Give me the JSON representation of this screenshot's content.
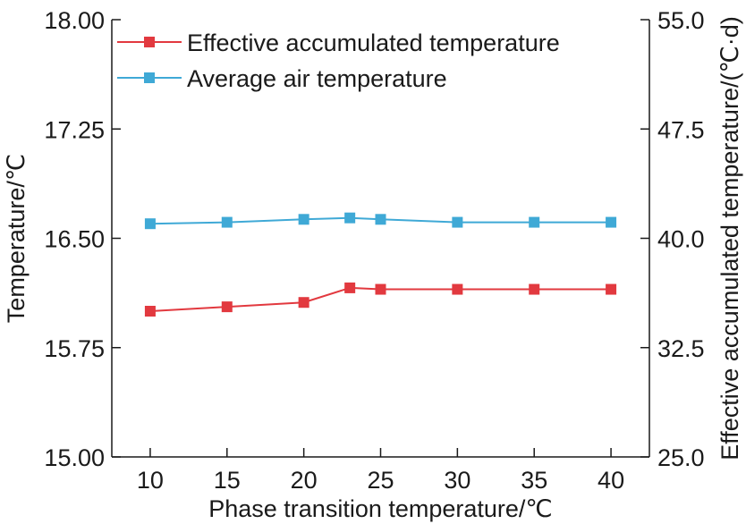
{
  "chart_data": {
    "type": "line",
    "title": "",
    "xlabel": "Phase transition temperature/℃",
    "ylabel": "Temperature/℃",
    "y2label": "Effective accumulated temperature/(℃·d)",
    "x": [
      10,
      15,
      20,
      23,
      25,
      30,
      35,
      40
    ],
    "x_ticks": [
      "10",
      "15",
      "20",
      "25",
      "30",
      "35",
      "40"
    ],
    "xlim": [
      7.5,
      42.5
    ],
    "ylim": [
      15.0,
      18.0
    ],
    "y_ticks": [
      "15.00",
      "15.75",
      "16.50",
      "17.25",
      "18.00"
    ],
    "y2lim": [
      25.0,
      55.0
    ],
    "y2_ticks": [
      "25.0",
      "32.5",
      "40.0",
      "47.5",
      "55.0"
    ],
    "legend_position": "top-left",
    "series": [
      {
        "name": "Effective accumulated temperature",
        "axis": "right",
        "color": "#e2393f",
        "marker": "square",
        "values": [
          35.0,
          35.3,
          35.6,
          36.6,
          36.5,
          36.5,
          36.5,
          36.5
        ]
      },
      {
        "name": "Average air temperature",
        "axis": "left",
        "color": "#3fa9d6",
        "marker": "square",
        "values": [
          16.6,
          16.61,
          16.63,
          16.64,
          16.63,
          16.61,
          16.61,
          16.61
        ]
      }
    ]
  }
}
